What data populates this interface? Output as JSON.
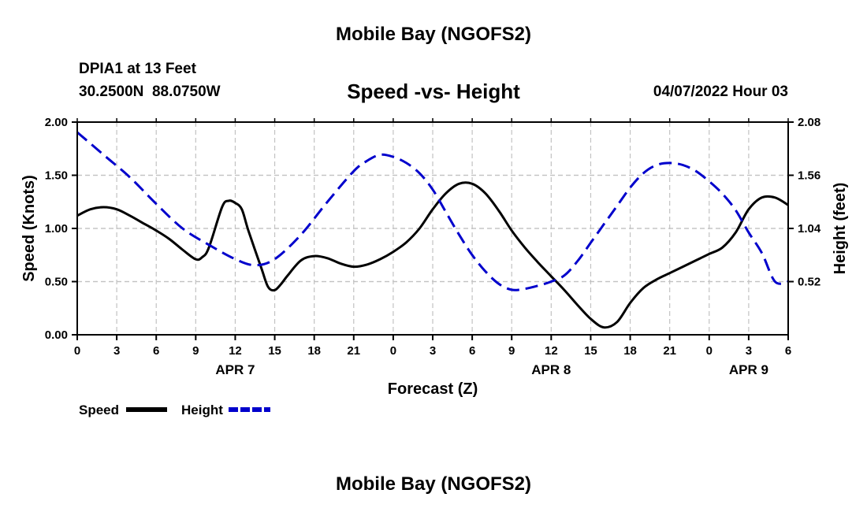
{
  "chart_data": {
    "type": "line",
    "title": "Mobile Bay (NGOFS2)",
    "bottom_title": "Mobile Bay (NGOFS2)",
    "subtitle": "Speed -vs- Height",
    "station": "DPIA1 at 13 Feet",
    "coordinates": "30.2500N  88.0750W",
    "timestamp": "04/07/2022 Hour 03",
    "xlabel": "Forecast (Z)",
    "ylabel_left": "Speed (Knots)",
    "ylabel_right": "Height (feet)",
    "xlim": [
      0,
      54
    ],
    "ylim_left": [
      0,
      2.0
    ],
    "ylim_right": [
      0,
      2.08
    ],
    "x_ticks": [
      0,
      3,
      6,
      9,
      12,
      15,
      18,
      21,
      24,
      27,
      30,
      33,
      36,
      39,
      42,
      45,
      48,
      51,
      54
    ],
    "x_tick_labels": [
      "0",
      "3",
      "6",
      "9",
      "12",
      "15",
      "18",
      "21",
      "0",
      "3",
      "6",
      "9",
      "12",
      "15",
      "18",
      "21",
      "0",
      "3",
      "6"
    ],
    "y_left_ticks": [
      0,
      0.5,
      1.0,
      1.5,
      2.0
    ],
    "y_left_tick_labels": [
      "0.00",
      "0.50",
      "1.00",
      "1.50",
      "2.00"
    ],
    "y_right_ticks": [
      0.52,
      1.04,
      1.56,
      2.08
    ],
    "y_right_tick_labels": [
      "0.52",
      "1.04",
      "1.56",
      "2.08"
    ],
    "date_labels": [
      {
        "x": 12,
        "label": "APR 7"
      },
      {
        "x": 36,
        "label": "APR 8"
      },
      {
        "x": 51,
        "label": "APR 9"
      }
    ],
    "grid": true,
    "legend": "bottom-left",
    "series": [
      {
        "name": "Speed",
        "axis": "left",
        "color": "#000000",
        "style": "solid",
        "x": [
          0,
          1,
          2,
          3,
          4,
          5,
          6,
          7,
          8,
          9,
          9.5,
          10,
          11,
          11.5,
          12,
          12.5,
          13,
          14,
          14.5,
          15,
          15.5,
          16,
          17,
          18,
          19,
          20,
          21,
          22,
          23,
          24,
          25,
          26,
          27,
          28,
          29,
          30,
          31,
          32,
          33,
          34,
          35,
          36,
          37,
          38,
          39,
          40,
          41,
          42,
          43,
          44,
          45,
          46,
          47,
          48,
          49,
          50,
          51,
          52,
          53,
          54
        ],
        "y": [
          1.12,
          1.18,
          1.2,
          1.18,
          1.12,
          1.05,
          0.98,
          0.9,
          0.8,
          0.71,
          0.73,
          0.82,
          1.2,
          1.26,
          1.24,
          1.18,
          0.98,
          0.62,
          0.45,
          0.42,
          0.48,
          0.56,
          0.7,
          0.74,
          0.72,
          0.67,
          0.64,
          0.66,
          0.71,
          0.78,
          0.87,
          1.0,
          1.18,
          1.33,
          1.42,
          1.42,
          1.33,
          1.17,
          0.98,
          0.82,
          0.68,
          0.55,
          0.42,
          0.28,
          0.15,
          0.07,
          0.12,
          0.3,
          0.44,
          0.52,
          0.58,
          0.64,
          0.7,
          0.76,
          0.82,
          0.96,
          1.18,
          1.29,
          1.29,
          1.22
        ]
      },
      {
        "name": "Height",
        "axis": "right",
        "color": "#0000cc",
        "style": "dashed",
        "x": [
          0,
          2,
          4,
          6,
          8,
          10,
          12,
          13.5,
          15,
          17,
          19,
          21,
          22,
          23,
          24,
          25,
          26,
          27,
          28,
          29,
          30,
          31,
          32,
          33,
          34,
          35,
          36,
          37,
          38,
          39,
          40,
          41,
          42,
          43,
          44,
          45,
          46,
          47,
          48,
          49,
          50,
          51,
          52,
          53,
          54
        ],
        "y": [
          1.98,
          1.76,
          1.54,
          1.28,
          1.04,
          0.88,
          0.74,
          0.68,
          0.74,
          0.98,
          1.3,
          1.6,
          1.7,
          1.76,
          1.74,
          1.68,
          1.58,
          1.42,
          1.2,
          0.98,
          0.78,
          0.62,
          0.5,
          0.44,
          0.45,
          0.48,
          0.52,
          0.58,
          0.72,
          0.9,
          1.08,
          1.26,
          1.44,
          1.58,
          1.66,
          1.68,
          1.66,
          1.6,
          1.5,
          1.38,
          1.22,
          1.0,
          0.8,
          0.52,
          0.52
        ]
      }
    ]
  }
}
